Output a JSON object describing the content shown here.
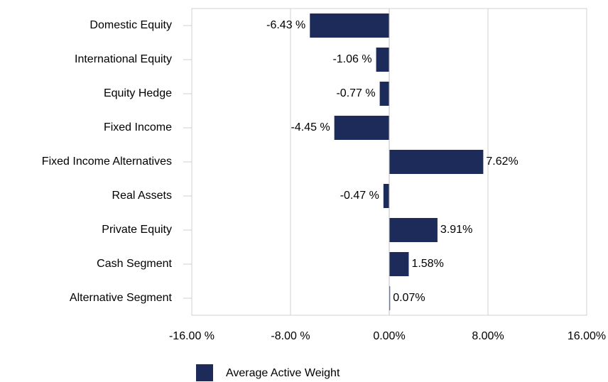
{
  "chart_data": {
    "type": "bar",
    "orientation": "horizontal",
    "categories": [
      "Domestic Equity",
      "International Equity",
      "Equity Hedge",
      "Fixed Income",
      "Fixed Income Alternatives",
      "Real Assets",
      "Private Equity",
      "Cash Segment",
      "Alternative Segment"
    ],
    "series": [
      {
        "name": "Average Active Weight",
        "color": "#1c2b5a",
        "values": [
          -6.43,
          -1.06,
          -0.77,
          -4.45,
          7.62,
          -0.47,
          3.91,
          1.58,
          0.07
        ],
        "value_labels": [
          "-6.43 %",
          "-1.06 %",
          "-0.77 %",
          "-4.45 %",
          "7.62%",
          "-0.47 %",
          "3.91%",
          "1.58%",
          "0.07%"
        ]
      }
    ],
    "xlim": [
      -16,
      16
    ],
    "xticks": [
      {
        "value": -16,
        "label": "-16.00 %"
      },
      {
        "value": -8,
        "label": "-8.00 %"
      },
      {
        "value": 0,
        "label": "0.00%"
      },
      {
        "value": 8,
        "label": "8.00%"
      },
      {
        "value": 16,
        "label": "16.00%"
      }
    ],
    "grid": true,
    "legend": "bottom"
  }
}
